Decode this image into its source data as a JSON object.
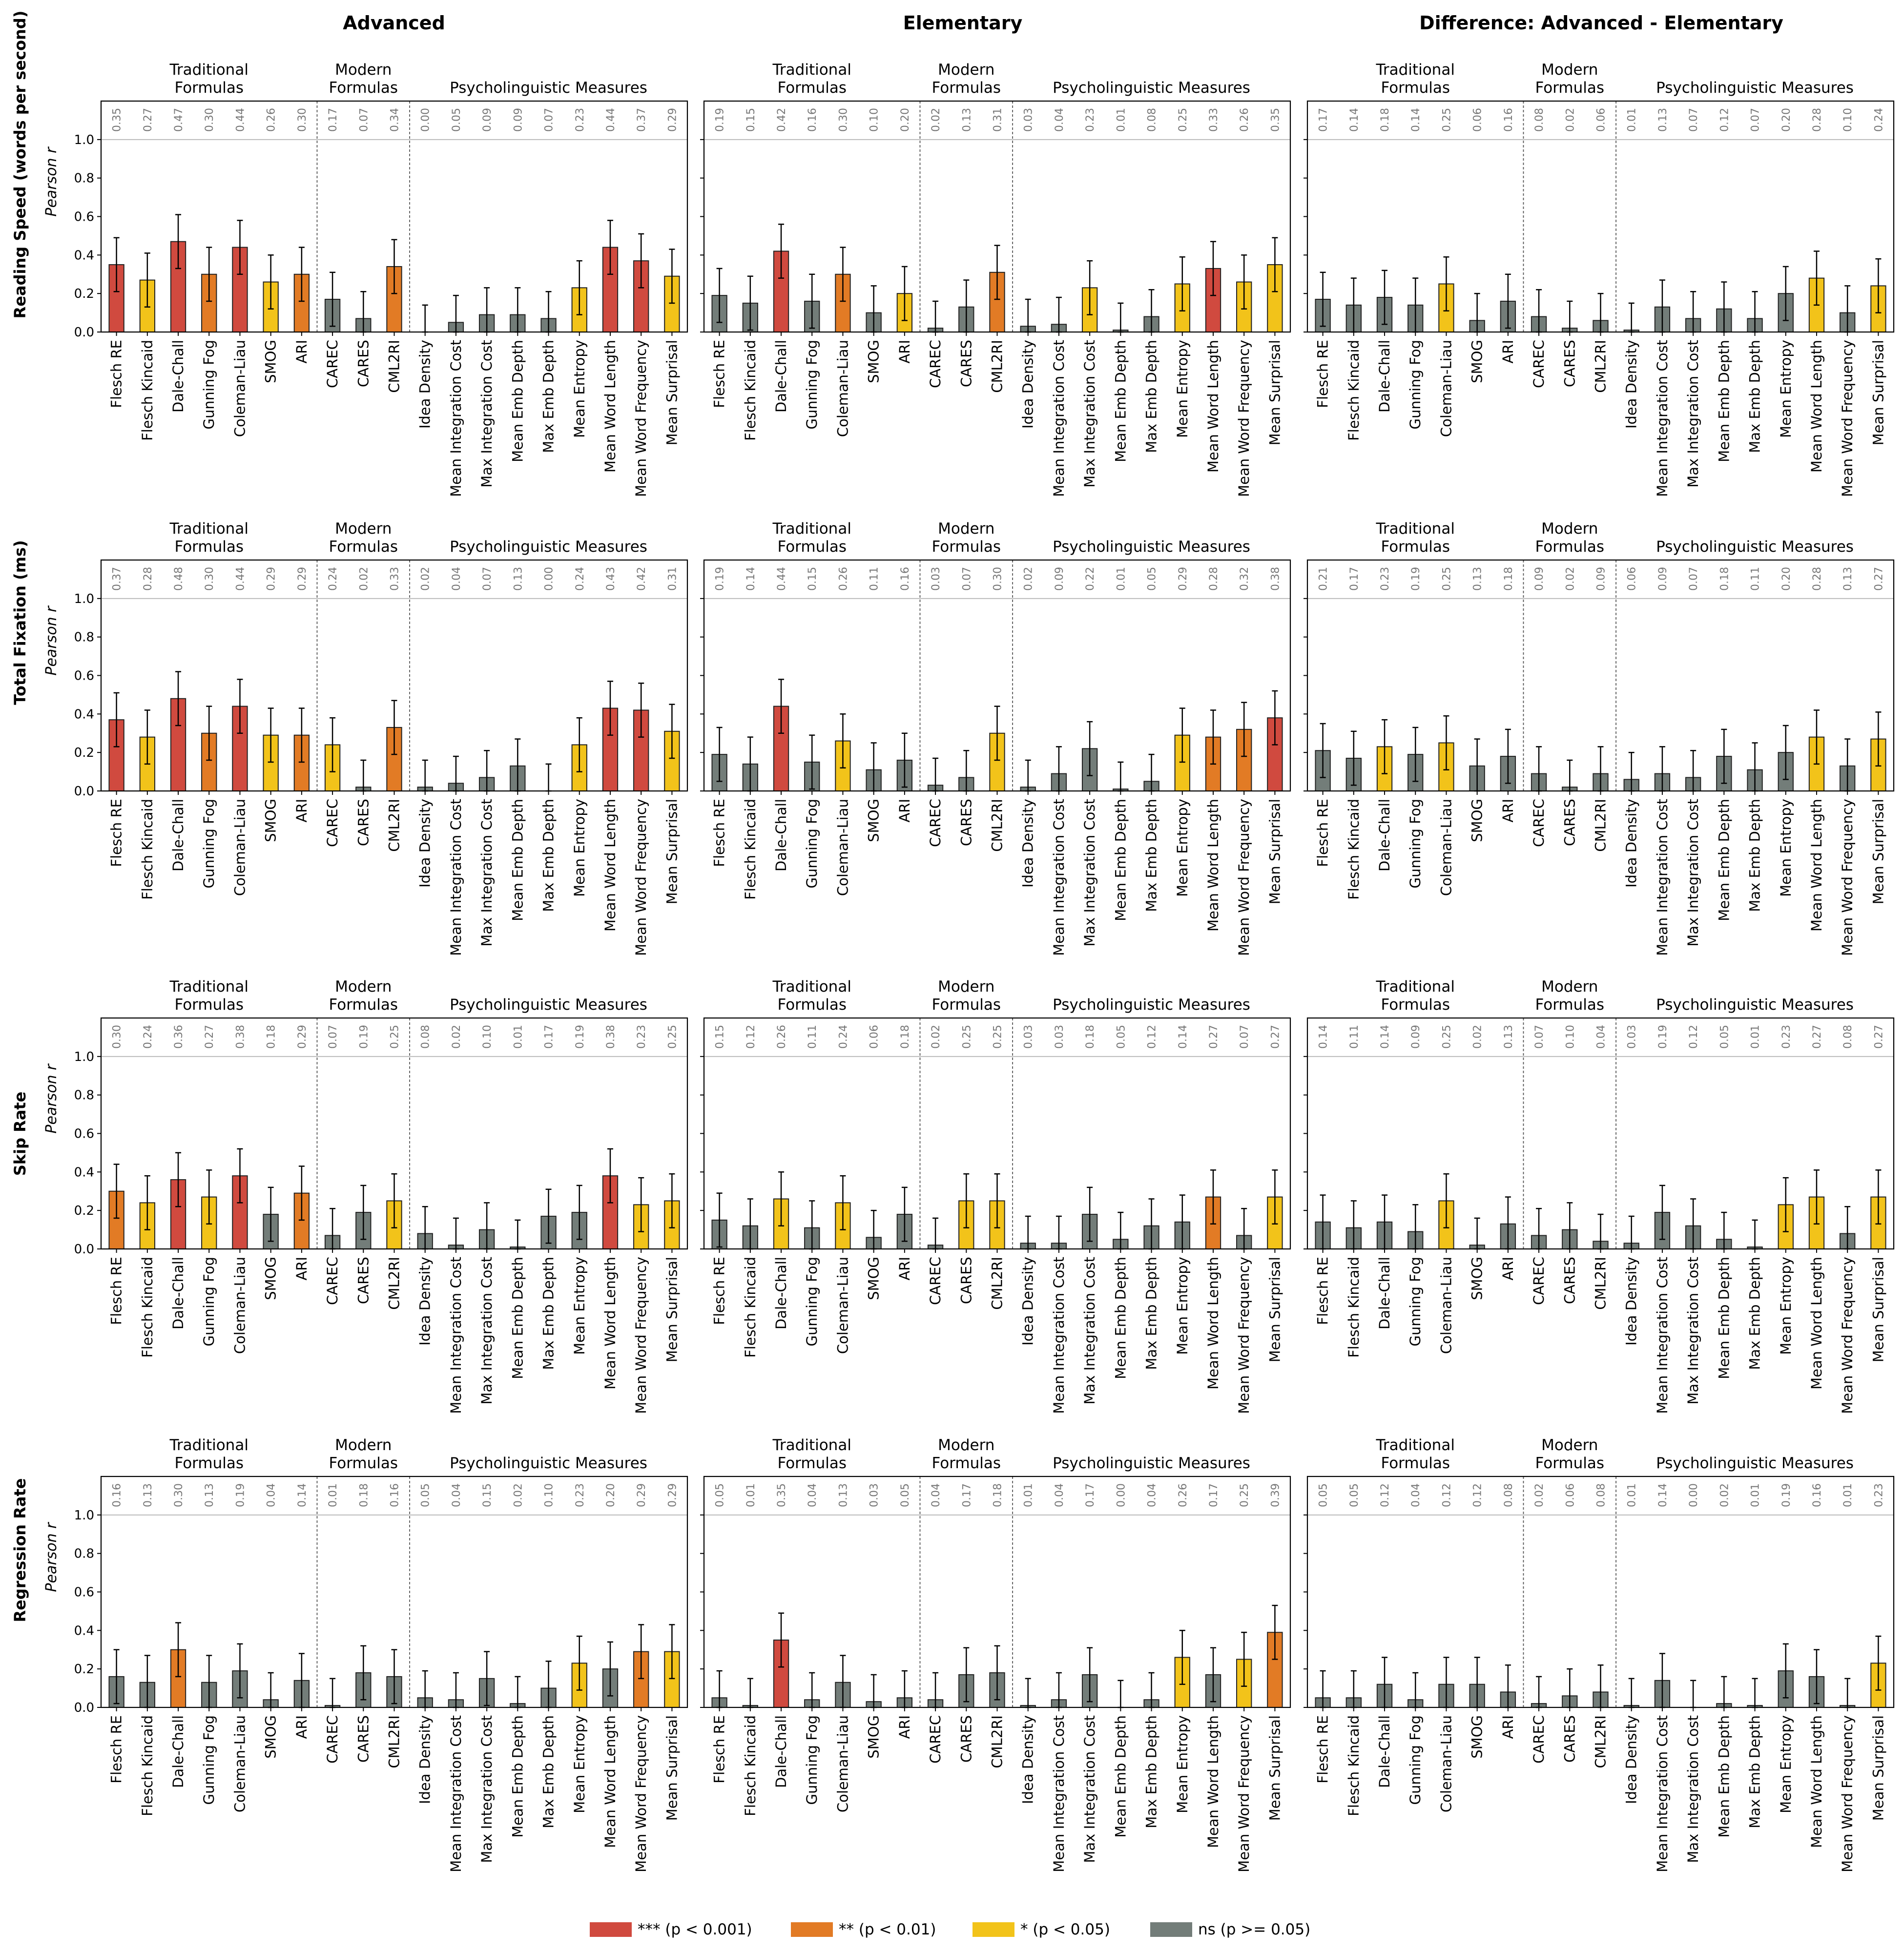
{
  "column_titles": [
    "Advanced",
    "Elementary",
    "Difference: Advanced - Elementary"
  ],
  "row_titles": [
    "Reading Speed (words per second)",
    "Total Fixation (ms)",
    "Skip Rate",
    "Regression Rate"
  ],
  "group_labels": {
    "traditional": [
      "Traditional",
      "Formulas"
    ],
    "modern": [
      "Modern",
      "Formulas"
    ],
    "psycholinguistic": "Psycholinguistic Measures"
  },
  "legend": [
    {
      "key": "p001",
      "label": "*** (p < 0.001)",
      "color": "#d04a3f"
    },
    {
      "key": "p01",
      "label": "** (p < 0.01)",
      "color": "#e27b25"
    },
    {
      "key": "p05",
      "label": "* (p < 0.05)",
      "color": "#f2c31a"
    },
    {
      "key": "ns",
      "label": "ns (p >= 0.05)",
      "color": "#737d79"
    }
  ],
  "chart_data": {
    "type": "bar",
    "layout": "4x3 grid of bar charts with error bars",
    "ylabel": "Pearson r",
    "ylim": [
      0,
      1.2
    ],
    "yticks": [
      "0.0",
      "0.2",
      "0.4",
      "0.6",
      "0.8",
      "1.0"
    ],
    "reference_line": 1.0,
    "groups": [
      {
        "name": "Traditional Formulas",
        "count": 7
      },
      {
        "name": "Modern Formulas",
        "count": 3
      },
      {
        "name": "Psycholinguistic Measures",
        "count": 9
      }
    ],
    "categories": [
      "Flesch RE",
      "Flesch Kincaid",
      "Dale-Chall",
      "Gunning Fog",
      "Coleman-Liau",
      "SMOG",
      "ARI",
      "CAREC",
      "CARES",
      "CML2RI",
      "Idea Density",
      "Mean Integration Cost",
      "Max Integration Cost",
      "Mean Emb Depth",
      "Max Emb Depth",
      "Mean Entropy",
      "Mean Word Length",
      "Mean Word Frequency",
      "Mean Surprisal"
    ],
    "panels": [
      [
        {
          "values": [
            0.35,
            0.27,
            0.47,
            0.3,
            0.44,
            0.26,
            0.3,
            0.17,
            0.07,
            0.34,
            0.0,
            0.05,
            0.09,
            0.09,
            0.07,
            0.23,
            0.44,
            0.37,
            0.29
          ],
          "sig": [
            "p001",
            "p05",
            "p001",
            "p01",
            "p001",
            "p05",
            "p01",
            "ns",
            "ns",
            "p01",
            "ns",
            "ns",
            "ns",
            "ns",
            "ns",
            "p05",
            "p001",
            "p001",
            "p05"
          ]
        },
        {
          "values": [
            0.19,
            0.15,
            0.42,
            0.16,
            0.3,
            0.1,
            0.2,
            0.02,
            0.13,
            0.31,
            0.03,
            0.04,
            0.23,
            0.01,
            0.08,
            0.25,
            0.33,
            0.26,
            0.35
          ],
          "sig": [
            "ns",
            "ns",
            "p001",
            "ns",
            "p01",
            "ns",
            "p05",
            "ns",
            "ns",
            "p01",
            "ns",
            "ns",
            "p05",
            "ns",
            "ns",
            "p05",
            "p001",
            "p05",
            "p05"
          ]
        },
        {
          "values": [
            0.17,
            0.14,
            0.18,
            0.14,
            0.25,
            0.06,
            0.16,
            0.08,
            0.02,
            0.06,
            0.01,
            0.13,
            0.07,
            0.12,
            0.07,
            0.2,
            0.28,
            0.1,
            0.24
          ],
          "sig": [
            "ns",
            "ns",
            "ns",
            "ns",
            "p05",
            "ns",
            "ns",
            "ns",
            "ns",
            "ns",
            "ns",
            "ns",
            "ns",
            "ns",
            "ns",
            "ns",
            "p05",
            "ns",
            "p05"
          ]
        }
      ],
      [
        {
          "values": [
            0.37,
            0.28,
            0.48,
            0.3,
            0.44,
            0.29,
            0.29,
            0.24,
            0.02,
            0.33,
            0.02,
            0.04,
            0.07,
            0.13,
            0.0,
            0.24,
            0.43,
            0.42,
            0.31
          ],
          "sig": [
            "p001",
            "p05",
            "p001",
            "p01",
            "p001",
            "p05",
            "p01",
            "p05",
            "ns",
            "p01",
            "ns",
            "ns",
            "ns",
            "ns",
            "ns",
            "p05",
            "p001",
            "p001",
            "p05"
          ]
        },
        {
          "values": [
            0.19,
            0.14,
            0.44,
            0.15,
            0.26,
            0.11,
            0.16,
            0.03,
            0.07,
            0.3,
            0.02,
            0.09,
            0.22,
            0.01,
            0.05,
            0.29,
            0.28,
            0.32,
            0.38
          ],
          "sig": [
            "ns",
            "ns",
            "p001",
            "ns",
            "p05",
            "ns",
            "ns",
            "ns",
            "ns",
            "p05",
            "ns",
            "ns",
            "ns",
            "ns",
            "ns",
            "p05",
            "p01",
            "p01",
            "p001"
          ]
        },
        {
          "values": [
            0.21,
            0.17,
            0.23,
            0.19,
            0.25,
            0.13,
            0.18,
            0.09,
            0.02,
            0.09,
            0.06,
            0.09,
            0.07,
            0.18,
            0.11,
            0.2,
            0.28,
            0.13,
            0.27
          ],
          "sig": [
            "ns",
            "ns",
            "p05",
            "ns",
            "p05",
            "ns",
            "ns",
            "ns",
            "ns",
            "ns",
            "ns",
            "ns",
            "ns",
            "ns",
            "ns",
            "ns",
            "p05",
            "ns",
            "p05"
          ]
        }
      ],
      [
        {
          "values": [
            0.3,
            0.24,
            0.36,
            0.27,
            0.38,
            0.18,
            0.29,
            0.07,
            0.19,
            0.25,
            0.08,
            0.02,
            0.1,
            0.01,
            0.17,
            0.19,
            0.38,
            0.23,
            0.25
          ],
          "sig": [
            "p01",
            "p05",
            "p001",
            "p05",
            "p001",
            "ns",
            "p01",
            "ns",
            "ns",
            "p05",
            "ns",
            "ns",
            "ns",
            "ns",
            "ns",
            "ns",
            "p001",
            "p05",
            "p05"
          ]
        },
        {
          "values": [
            0.15,
            0.12,
            0.26,
            0.11,
            0.24,
            0.06,
            0.18,
            0.02,
            0.25,
            0.25,
            0.03,
            0.03,
            0.18,
            0.05,
            0.12,
            0.14,
            0.27,
            0.07,
            0.27
          ],
          "sig": [
            "ns",
            "ns",
            "p05",
            "ns",
            "p05",
            "ns",
            "ns",
            "ns",
            "p05",
            "p05",
            "ns",
            "ns",
            "ns",
            "ns",
            "ns",
            "ns",
            "p01",
            "ns",
            "p05"
          ]
        },
        {
          "values": [
            0.14,
            0.11,
            0.14,
            0.09,
            0.25,
            0.02,
            0.13,
            0.07,
            0.1,
            0.04,
            0.03,
            0.19,
            0.12,
            0.05,
            0.01,
            0.23,
            0.27,
            0.08,
            0.27
          ],
          "sig": [
            "ns",
            "ns",
            "ns",
            "ns",
            "p05",
            "ns",
            "ns",
            "ns",
            "ns",
            "ns",
            "ns",
            "ns",
            "ns",
            "ns",
            "ns",
            "p05",
            "p05",
            "ns",
            "p05"
          ]
        }
      ],
      [
        {
          "values": [
            0.16,
            0.13,
            0.3,
            0.13,
            0.19,
            0.04,
            0.14,
            0.01,
            0.18,
            0.16,
            0.05,
            0.04,
            0.15,
            0.02,
            0.1,
            0.23,
            0.2,
            0.29,
            0.29
          ],
          "sig": [
            "ns",
            "ns",
            "p01",
            "ns",
            "ns",
            "ns",
            "ns",
            "ns",
            "ns",
            "ns",
            "ns",
            "ns",
            "ns",
            "ns",
            "ns",
            "p05",
            "ns",
            "p01",
            "p05"
          ]
        },
        {
          "values": [
            0.05,
            0.01,
            0.35,
            0.04,
            0.13,
            0.03,
            0.05,
            0.04,
            0.17,
            0.18,
            0.01,
            0.04,
            0.17,
            0.0,
            0.04,
            0.26,
            0.17,
            0.25,
            0.39
          ],
          "sig": [
            "ns",
            "ns",
            "p001",
            "ns",
            "ns",
            "ns",
            "ns",
            "ns",
            "ns",
            "ns",
            "ns",
            "ns",
            "ns",
            "ns",
            "ns",
            "p05",
            "ns",
            "p05",
            "p01"
          ]
        },
        {
          "values": [
            0.05,
            0.05,
            0.12,
            0.04,
            0.12,
            0.12,
            0.08,
            0.02,
            0.06,
            0.08,
            0.01,
            0.14,
            0.0,
            0.02,
            0.01,
            0.19,
            0.16,
            0.01,
            0.23
          ],
          "sig": [
            "ns",
            "ns",
            "ns",
            "ns",
            "ns",
            "ns",
            "ns",
            "ns",
            "ns",
            "ns",
            "ns",
            "ns",
            "ns",
            "ns",
            "ns",
            "ns",
            "ns",
            "ns",
            "p05"
          ]
        }
      ]
    ]
  }
}
